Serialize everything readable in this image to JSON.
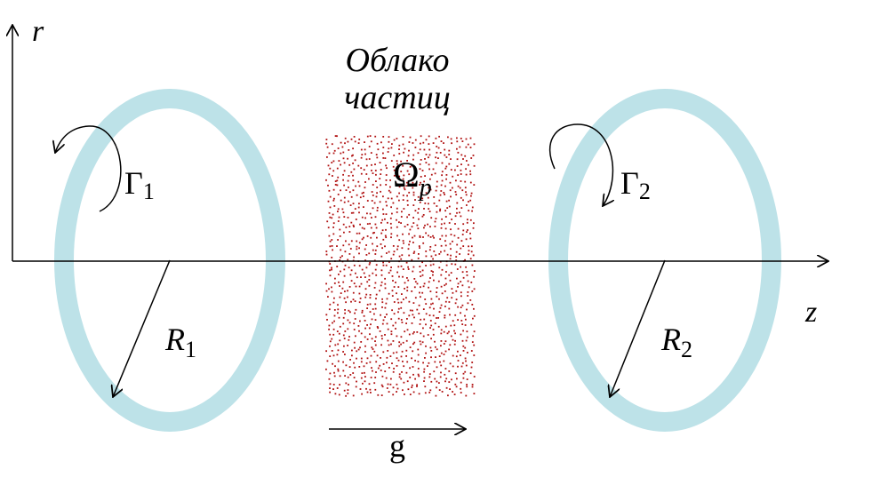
{
  "colors": {
    "ring": "#bde2e8",
    "particles": "#b01010",
    "axes": "#000000"
  },
  "axes": {
    "r_label": "r",
    "z_label": "z"
  },
  "cloud": {
    "title_line1": "Облако",
    "title_line2": "частиц",
    "symbol": "Ω",
    "symbol_sub": "p"
  },
  "ring1": {
    "gamma": "Γ",
    "gamma_sub": "1",
    "radius": "R",
    "radius_sub": "1",
    "rotation": "counterclockwise"
  },
  "ring2": {
    "gamma": "Γ",
    "gamma_sub": "2",
    "radius": "R",
    "radius_sub": "2",
    "rotation": "clockwise"
  },
  "gravity": {
    "label": "g"
  }
}
